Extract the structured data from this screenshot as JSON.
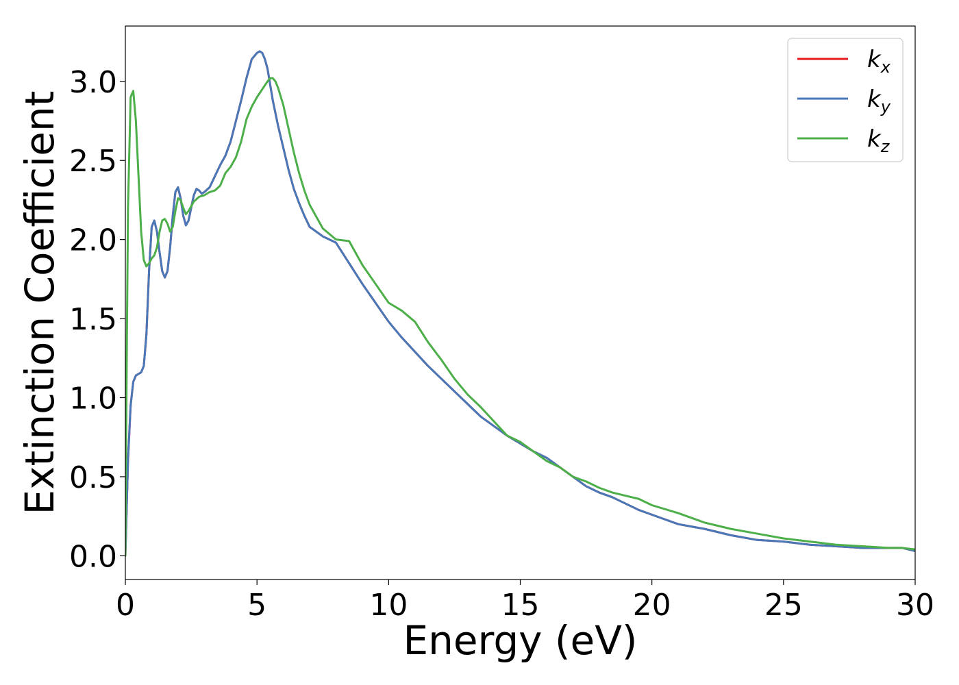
{
  "chart_data": {
    "type": "line",
    "title": "",
    "xlabel": "Energy (eV)",
    "ylabel": "Extinction Coefficient",
    "xlim": [
      0,
      30
    ],
    "ylim": [
      -0.15,
      3.35
    ],
    "xticks": [
      0,
      5,
      10,
      15,
      20,
      25,
      30
    ],
    "xtick_labels": [
      "0",
      "5",
      "10",
      "15",
      "20",
      "25",
      "30"
    ],
    "yticks": [
      0.0,
      0.5,
      1.0,
      1.5,
      2.0,
      2.5,
      3.0
    ],
    "ytick_labels": [
      "0.0",
      "0.5",
      "1.0",
      "1.5",
      "2.0",
      "2.5",
      "3.0"
    ],
    "grid": false,
    "legend_position": "top-right",
    "series": [
      {
        "name": "k",
        "subscript": "x",
        "color": "#e41a1c",
        "x": [
          0,
          0.1,
          0.2,
          0.3,
          0.4,
          0.5,
          0.6,
          0.7,
          0.8,
          0.9,
          1.0,
          1.1,
          1.2,
          1.3,
          1.4,
          1.5,
          1.6,
          1.7,
          1.8,
          1.9,
          2.0,
          2.1,
          2.2,
          2.3,
          2.4,
          2.5,
          2.6,
          2.7,
          2.8,
          2.9,
          3.0,
          3.2,
          3.4,
          3.6,
          3.8,
          4.0,
          4.2,
          4.4,
          4.6,
          4.8,
          5.0,
          5.1,
          5.2,
          5.3,
          5.4,
          5.5,
          5.6,
          5.8,
          6.0,
          6.2,
          6.4,
          6.6,
          6.8,
          7.0,
          7.5,
          8.0,
          8.5,
          9.0,
          9.5,
          10.0,
          10.5,
          11.0,
          11.5,
          12.0,
          12.5,
          13.0,
          13.5,
          14.0,
          14.5,
          15.0,
          15.5,
          16.0,
          16.5,
          17.0,
          17.5,
          18.0,
          18.5,
          19.0,
          19.5,
          20.0,
          21.0,
          22.0,
          23.0,
          24.0,
          25.0,
          26.0,
          27.0,
          28.0,
          29.0,
          29.5,
          30.0
        ],
        "values": [
          0.0,
          0.6,
          0.95,
          1.1,
          1.14,
          1.15,
          1.16,
          1.2,
          1.4,
          1.8,
          2.08,
          2.12,
          2.05,
          1.92,
          1.8,
          1.76,
          1.8,
          1.95,
          2.15,
          2.3,
          2.33,
          2.26,
          2.15,
          2.09,
          2.12,
          2.2,
          2.28,
          2.32,
          2.31,
          2.29,
          2.3,
          2.33,
          2.4,
          2.47,
          2.53,
          2.62,
          2.75,
          2.88,
          3.02,
          3.14,
          3.18,
          3.19,
          3.18,
          3.14,
          3.08,
          2.98,
          2.88,
          2.72,
          2.58,
          2.44,
          2.32,
          2.23,
          2.15,
          2.08,
          2.02,
          1.98,
          1.85,
          1.72,
          1.6,
          1.48,
          1.38,
          1.29,
          1.2,
          1.12,
          1.04,
          0.96,
          0.88,
          0.82,
          0.76,
          0.71,
          0.66,
          0.62,
          0.56,
          0.5,
          0.44,
          0.4,
          0.37,
          0.33,
          0.29,
          0.26,
          0.2,
          0.17,
          0.13,
          0.1,
          0.09,
          0.07,
          0.06,
          0.05,
          0.05,
          0.05,
          0.03
        ]
      },
      {
        "name": "k",
        "subscript": "y",
        "color": "#4878b8",
        "x": [
          0,
          0.1,
          0.2,
          0.3,
          0.4,
          0.5,
          0.6,
          0.7,
          0.8,
          0.9,
          1.0,
          1.1,
          1.2,
          1.3,
          1.4,
          1.5,
          1.6,
          1.7,
          1.8,
          1.9,
          2.0,
          2.1,
          2.2,
          2.3,
          2.4,
          2.5,
          2.6,
          2.7,
          2.8,
          2.9,
          3.0,
          3.2,
          3.4,
          3.6,
          3.8,
          4.0,
          4.2,
          4.4,
          4.6,
          4.8,
          5.0,
          5.1,
          5.2,
          5.3,
          5.4,
          5.5,
          5.6,
          5.8,
          6.0,
          6.2,
          6.4,
          6.6,
          6.8,
          7.0,
          7.5,
          8.0,
          8.5,
          9.0,
          9.5,
          10.0,
          10.5,
          11.0,
          11.5,
          12.0,
          12.5,
          13.0,
          13.5,
          14.0,
          14.5,
          15.0,
          15.5,
          16.0,
          16.5,
          17.0,
          17.5,
          18.0,
          18.5,
          19.0,
          19.5,
          20.0,
          21.0,
          22.0,
          23.0,
          24.0,
          25.0,
          26.0,
          27.0,
          28.0,
          29.0,
          29.5,
          30.0
        ],
        "values": [
          0.0,
          0.6,
          0.95,
          1.1,
          1.14,
          1.15,
          1.16,
          1.2,
          1.4,
          1.8,
          2.08,
          2.12,
          2.05,
          1.92,
          1.8,
          1.76,
          1.8,
          1.95,
          2.15,
          2.3,
          2.33,
          2.26,
          2.15,
          2.09,
          2.12,
          2.2,
          2.28,
          2.32,
          2.31,
          2.29,
          2.3,
          2.33,
          2.4,
          2.47,
          2.53,
          2.62,
          2.75,
          2.88,
          3.02,
          3.14,
          3.18,
          3.19,
          3.18,
          3.14,
          3.08,
          2.98,
          2.88,
          2.72,
          2.58,
          2.44,
          2.32,
          2.23,
          2.15,
          2.08,
          2.02,
          1.98,
          1.85,
          1.72,
          1.6,
          1.48,
          1.38,
          1.29,
          1.2,
          1.12,
          1.04,
          0.96,
          0.88,
          0.82,
          0.76,
          0.71,
          0.66,
          0.62,
          0.56,
          0.5,
          0.44,
          0.4,
          0.37,
          0.33,
          0.29,
          0.26,
          0.2,
          0.17,
          0.13,
          0.1,
          0.09,
          0.07,
          0.06,
          0.05,
          0.05,
          0.05,
          0.03
        ]
      },
      {
        "name": "k",
        "subscript": "z",
        "color": "#4daf4a",
        "x": [
          0,
          0.05,
          0.1,
          0.2,
          0.3,
          0.4,
          0.5,
          0.6,
          0.7,
          0.8,
          0.9,
          1.0,
          1.1,
          1.2,
          1.3,
          1.4,
          1.5,
          1.6,
          1.7,
          1.8,
          1.9,
          2.0,
          2.1,
          2.2,
          2.3,
          2.4,
          2.6,
          2.8,
          3.0,
          3.2,
          3.4,
          3.6,
          3.8,
          4.0,
          4.2,
          4.4,
          4.6,
          4.8,
          5.0,
          5.2,
          5.4,
          5.5,
          5.6,
          5.7,
          5.8,
          6.0,
          6.2,
          6.4,
          6.6,
          6.8,
          7.0,
          7.5,
          8.0,
          8.5,
          9.0,
          9.5,
          10.0,
          10.5,
          11.0,
          11.5,
          12.0,
          12.5,
          13.0,
          13.5,
          14.0,
          14.5,
          15.0,
          15.5,
          16.0,
          16.5,
          17.0,
          17.5,
          18.0,
          18.5,
          19.0,
          19.5,
          20.0,
          21.0,
          22.0,
          23.0,
          24.0,
          25.0,
          26.0,
          27.0,
          28.0,
          29.0,
          29.5,
          30.0
        ],
        "values": [
          0.0,
          1.2,
          2.2,
          2.9,
          2.94,
          2.75,
          2.4,
          2.05,
          1.87,
          1.83,
          1.85,
          1.88,
          1.9,
          1.95,
          2.05,
          2.12,
          2.13,
          2.1,
          2.05,
          2.08,
          2.18,
          2.26,
          2.25,
          2.2,
          2.16,
          2.18,
          2.24,
          2.27,
          2.28,
          2.3,
          2.31,
          2.34,
          2.42,
          2.46,
          2.52,
          2.62,
          2.76,
          2.84,
          2.9,
          2.95,
          3.0,
          3.02,
          3.02,
          3.0,
          2.96,
          2.85,
          2.7,
          2.55,
          2.42,
          2.31,
          2.22,
          2.07,
          2.0,
          1.99,
          1.84,
          1.72,
          1.6,
          1.55,
          1.48,
          1.35,
          1.24,
          1.12,
          1.02,
          0.94,
          0.85,
          0.76,
          0.72,
          0.66,
          0.6,
          0.56,
          0.5,
          0.47,
          0.43,
          0.4,
          0.38,
          0.36,
          0.32,
          0.27,
          0.21,
          0.17,
          0.14,
          0.11,
          0.09,
          0.07,
          0.06,
          0.05,
          0.05,
          0.04
        ]
      }
    ]
  }
}
